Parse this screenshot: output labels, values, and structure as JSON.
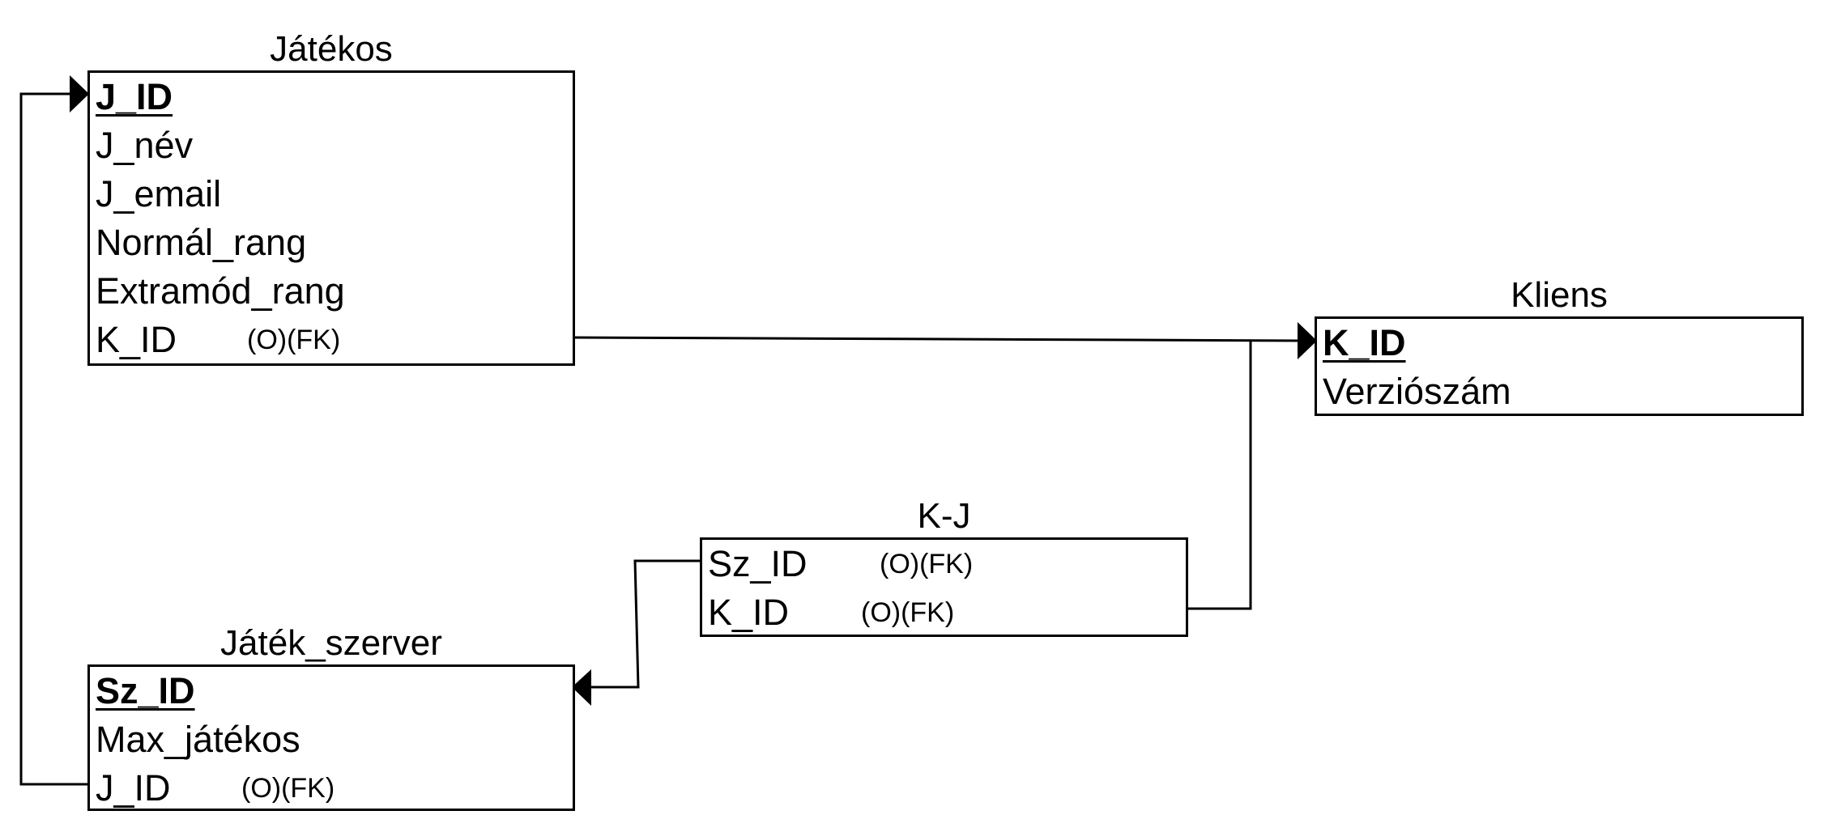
{
  "entities": {
    "jatekos": {
      "title": "Játékos",
      "attributes": [
        {
          "name": "J_ID",
          "primary_key": true
        },
        {
          "name": "J_név"
        },
        {
          "name": "J_email"
        },
        {
          "name": "Normál_rang"
        },
        {
          "name": "Extramód_rang"
        },
        {
          "name": "K_ID",
          "tag": "(O)(FK)"
        }
      ]
    },
    "kliens": {
      "title": "Kliens",
      "attributes": [
        {
          "name": "K_ID",
          "primary_key": true
        },
        {
          "name": "Verziószám"
        }
      ]
    },
    "kj": {
      "title": "K-J",
      "attributes": [
        {
          "name": "Sz_ID",
          "tag": "(O)(FK)"
        },
        {
          "name": "K_ID",
          "tag": "(O)(FK)"
        }
      ]
    },
    "jatek_szerver": {
      "title": "Játék_szerver",
      "attributes": [
        {
          "name": "Sz_ID",
          "primary_key": true
        },
        {
          "name": "Max_játékos"
        },
        {
          "name": "J_ID",
          "tag": "(O)(FK)"
        }
      ]
    }
  },
  "relationships": [
    {
      "from": "Játékos.K_ID",
      "to": "Kliens.K_ID"
    },
    {
      "from": "K-J.K_ID",
      "to": "Kliens.K_ID"
    },
    {
      "from": "K-J.Sz_ID",
      "to": "Játék_szerver.Sz_ID"
    },
    {
      "from": "Játék_szerver.J_ID",
      "to": "Játékos.J_ID"
    }
  ]
}
